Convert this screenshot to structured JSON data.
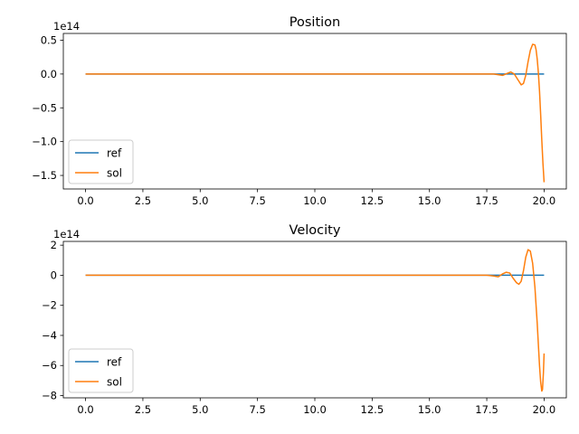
{
  "chart_data": [
    {
      "type": "line",
      "title": "Position",
      "offset_text": "1e14",
      "xlim": [
        -0.97,
        20.97
      ],
      "ylim": [
        -1.7,
        0.6
      ],
      "xticks": [
        0,
        2.5,
        5,
        7.5,
        10,
        12.5,
        15,
        17.5,
        20
      ],
      "xtick_labels": [
        "0.0",
        "2.5",
        "5.0",
        "7.5",
        "10.0",
        "12.5",
        "15.0",
        "17.5",
        "20.0"
      ],
      "yticks": [
        0.5,
        0,
        -0.5,
        -1,
        -1.5
      ],
      "ytick_labels": [
        "0.5",
        "0.0",
        "−0.5",
        "−1.0",
        "−1.5"
      ],
      "grid": false,
      "legend_position": "lower-left",
      "series": [
        {
          "name": "ref",
          "color": "#1f77b4",
          "x": [
            0,
            20
          ],
          "y": [
            0,
            0
          ]
        },
        {
          "name": "sol",
          "color": "#ff7f0e",
          "x": [
            0,
            17.0,
            17.5,
            17.8,
            18.0,
            18.2,
            18.4,
            18.55,
            18.7,
            18.85,
            19.0,
            19.1,
            19.2,
            19.3,
            19.4,
            19.5,
            19.6,
            19.65,
            19.7,
            19.75,
            19.8,
            19.85,
            19.9,
            19.95,
            20.0
          ],
          "y": [
            0,
            0,
            0,
            0,
            -0.01,
            -0.02,
            0.01,
            0.03,
            0.0,
            -0.08,
            -0.16,
            -0.14,
            -0.02,
            0.18,
            0.35,
            0.44,
            0.43,
            0.36,
            0.22,
            0.02,
            -0.25,
            -0.6,
            -0.98,
            -1.32,
            -1.6
          ]
        }
      ]
    },
    {
      "type": "line",
      "title": "Velocity",
      "offset_text": "1e14",
      "xlim": [
        -0.97,
        20.97
      ],
      "ylim": [
        -8.15,
        2.25
      ],
      "xticks": [
        0,
        2.5,
        5,
        7.5,
        10,
        12.5,
        15,
        17.5,
        20
      ],
      "xtick_labels": [
        "0.0",
        "2.5",
        "5.0",
        "7.5",
        "10.0",
        "12.5",
        "15.0",
        "17.5",
        "20.0"
      ],
      "yticks": [
        2,
        0,
        -2,
        -4,
        -6,
        -8
      ],
      "ytick_labels": [
        "2",
        "0",
        "−2",
        "−4",
        "−6",
        "−8"
      ],
      "grid": false,
      "legend_position": "lower-left",
      "series": [
        {
          "name": "ref",
          "color": "#1f77b4",
          "x": [
            0,
            20
          ],
          "y": [
            0,
            0
          ]
        },
        {
          "name": "sol",
          "color": "#ff7f0e",
          "x": [
            0,
            17.0,
            17.5,
            17.8,
            18.0,
            18.2,
            18.35,
            18.5,
            18.65,
            18.8,
            18.9,
            19.0,
            19.1,
            19.2,
            19.3,
            19.4,
            19.5,
            19.6,
            19.7,
            19.75,
            19.8,
            19.85,
            19.9,
            19.93,
            19.97,
            20.0
          ],
          "y": [
            0,
            0,
            0,
            -0.05,
            -0.1,
            0.1,
            0.2,
            0.15,
            -0.2,
            -0.5,
            -0.6,
            -0.4,
            0.3,
            1.2,
            1.7,
            1.6,
            0.8,
            -0.8,
            -3.2,
            -4.6,
            -6.0,
            -7.1,
            -7.7,
            -7.6,
            -6.5,
            -5.2
          ]
        }
      ]
    }
  ]
}
